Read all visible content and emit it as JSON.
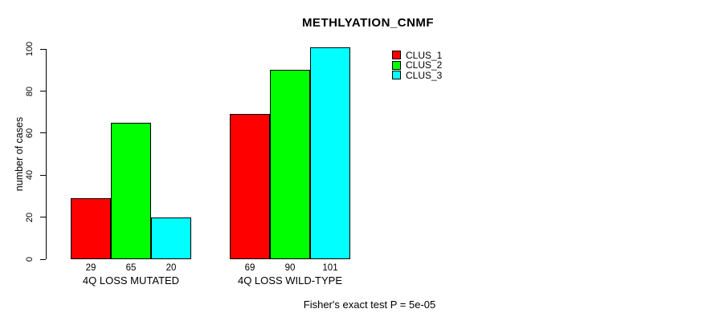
{
  "chart_data": {
    "type": "bar",
    "title": "METHLYATION_CNMF",
    "categories": [
      "4Q LOSS MUTATED",
      "4Q LOSS WILD-TYPE"
    ],
    "series": [
      {
        "name": "CLUS_1",
        "color": "#ff0000",
        "values": [
          29,
          69
        ]
      },
      {
        "name": "CLUS_2",
        "color": "#00ff00",
        "values": [
          65,
          90
        ]
      },
      {
        "name": "CLUS_3",
        "color": "#00ffff",
        "values": [
          20,
          101
        ]
      }
    ],
    "ylabel": "number of cases",
    "xlabel": "",
    "yticks": [
      0,
      20,
      40,
      60,
      80,
      100
    ],
    "ylim": [
      0,
      100
    ],
    "grid": false,
    "bar_value_labels": [
      [
        29,
        65,
        20
      ],
      [
        69,
        90,
        101
      ]
    ],
    "legend_position": "top-right",
    "bar_border_color": "#000000",
    "background_color": "#ffffff",
    "annotation": "Fisher's exact test P = 5e-05"
  }
}
